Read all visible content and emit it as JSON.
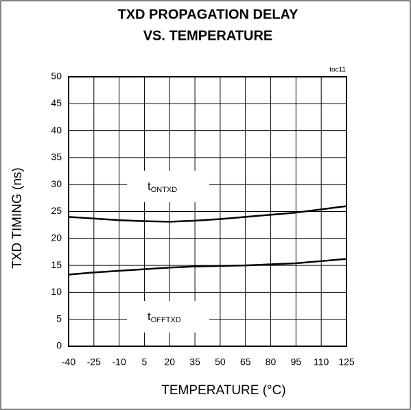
{
  "chart_data": {
    "type": "line",
    "title": [
      "TXD PROPAGATION DELAY",
      "VS. TEMPERATURE"
    ],
    "annotation": "toc11",
    "xlabel": "TEMPERATURE (°C)",
    "ylabel": "TXD TIMING (ns)",
    "x": [
      -40,
      -25,
      -10,
      5,
      20,
      35,
      50,
      65,
      80,
      95,
      110,
      125
    ],
    "series": [
      {
        "label": "t",
        "label_sub": "ONTXD",
        "color": "#000000",
        "values": [
          24,
          23.7,
          23.4,
          23.2,
          23.1,
          23.3,
          23.6,
          24,
          24.4,
          24.8,
          25.4,
          26
        ]
      },
      {
        "label": "t",
        "label_sub": "OFFTXD",
        "color": "#000000",
        "values": [
          13.3,
          13.7,
          14,
          14.3,
          14.6,
          14.8,
          14.9,
          15,
          15.2,
          15.4,
          15.8,
          16.2
        ]
      }
    ],
    "xlim": [
      -40,
      125
    ],
    "xticks": [
      -40,
      -25,
      -10,
      5,
      20,
      35,
      50,
      65,
      80,
      95,
      110,
      125
    ],
    "ylim": [
      0,
      50
    ],
    "yticks": [
      0,
      5,
      10,
      15,
      20,
      25,
      30,
      35,
      40,
      45,
      50
    ],
    "grid": true
  }
}
